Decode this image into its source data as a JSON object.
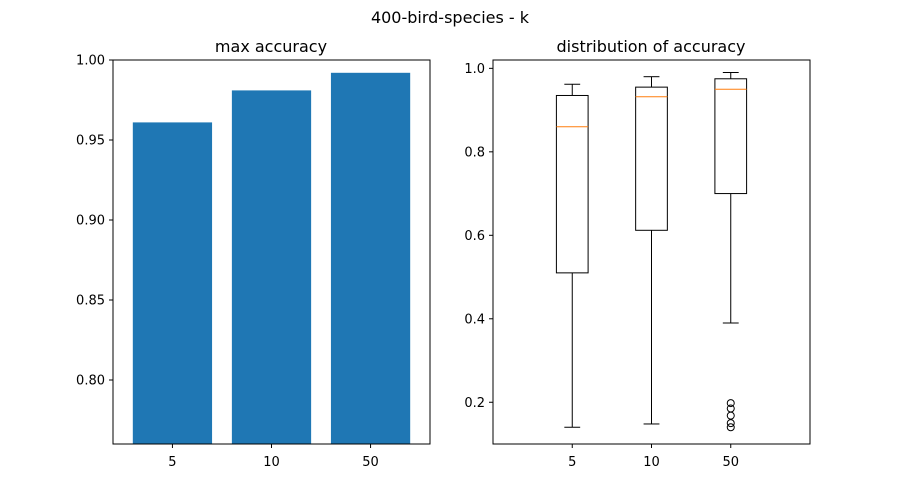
{
  "figure_title": "400-bird-species - k",
  "chart_data": [
    {
      "type": "bar",
      "title": "max accuracy",
      "xlabel": "",
      "ylabel": "",
      "categories": [
        "5",
        "10",
        "50"
      ],
      "values": [
        0.961,
        0.981,
        0.992
      ],
      "ylim": [
        0.76,
        1.0
      ],
      "yticks": [
        0.8,
        0.85,
        0.9,
        0.95,
        1.0
      ],
      "ytick_labels": [
        "0.80",
        "0.85",
        "0.90",
        "0.95",
        "1.00"
      ],
      "color": "#1f77b4",
      "grid": false
    },
    {
      "type": "box",
      "title": "distribution of accuracy",
      "xlabel": "",
      "ylabel": "",
      "categories": [
        "5",
        "10",
        "50"
      ],
      "boxes": [
        {
          "whisker_low": 0.14,
          "q1": 0.51,
          "median": 0.86,
          "q3": 0.935,
          "whisker_high": 0.962,
          "outliers": []
        },
        {
          "whisker_low": 0.148,
          "q1": 0.612,
          "median": 0.932,
          "q3": 0.955,
          "whisker_high": 0.98,
          "outliers": []
        },
        {
          "whisker_low": 0.39,
          "q1": 0.7,
          "median": 0.95,
          "q3": 0.975,
          "whisker_high": 0.99,
          "outliers": [
            0.14,
            0.15,
            0.168,
            0.185,
            0.198
          ]
        }
      ],
      "ylim": [
        0.1,
        1.02
      ],
      "yticks": [
        0.2,
        0.4,
        0.6,
        0.8,
        1.0
      ],
      "ytick_labels": [
        "0.2",
        "0.4",
        "0.6",
        "0.8",
        "1.0"
      ],
      "median_color": "#ff7f0e",
      "grid": false
    }
  ]
}
